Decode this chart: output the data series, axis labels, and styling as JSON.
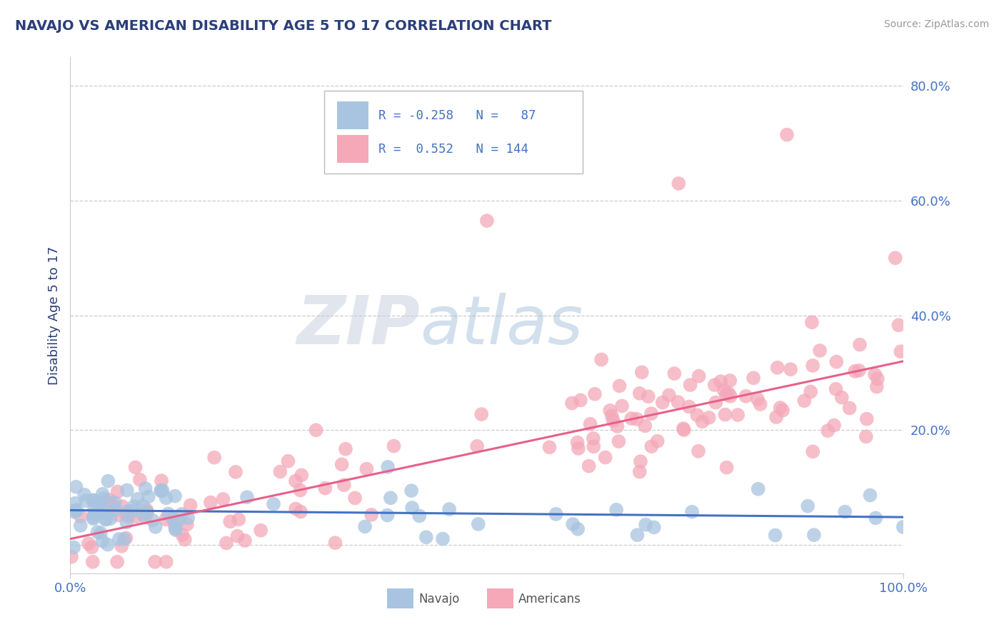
{
  "title": "NAVAJO VS AMERICAN DISABILITY AGE 5 TO 17 CORRELATION CHART",
  "source": "Source: ZipAtlas.com",
  "ylabel": "Disability Age 5 to 17",
  "navajo_R": -0.258,
  "navajo_N": 87,
  "american_R": 0.552,
  "american_N": 144,
  "navajo_color": "#a8c4e0",
  "american_color": "#f4a8b8",
  "navajo_line_color": "#4472c4",
  "american_line_color": "#e8608a",
  "background_color": "#ffffff",
  "watermark_color": "#cdd5e8",
  "xlim": [
    0.0,
    1.0
  ],
  "ylim": [
    -0.05,
    0.85
  ],
  "yticks": [
    0.0,
    0.2,
    0.4,
    0.6,
    0.8
  ],
  "ytick_labels": [
    "",
    "20.0%",
    "40.0%",
    "60.0%",
    "80.0%"
  ],
  "grid_color": "#cccccc",
  "title_color": "#2c3e7a",
  "tick_label_color": "#4472c4",
  "nav_line_start_y": 0.06,
  "nav_line_end_y": 0.048,
  "amer_line_start_y": 0.01,
  "amer_line_end_y": 0.32
}
